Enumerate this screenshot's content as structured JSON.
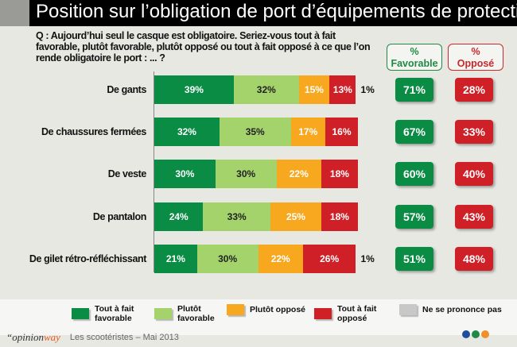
{
  "title": "Position sur l’obligation de port d’équipements de protection",
  "question": "Q : Aujourd’hui seul le casque est obligatoire. Seriez-vous tout à fait favorable, plutôt favorable, plutôt opposé ou tout à fait opposé à ce que l’on rende obligatoire le port : ... ?",
  "headers": {
    "favorable": [
      "%",
      "Favorable"
    ],
    "oppose": [
      "%",
      "Opposé"
    ]
  },
  "colors": {
    "tout_fav": "#0b8c44",
    "plutot_fav": "#a3d36a",
    "plutot_opp": "#f8a81f",
    "tout_opp": "#cf2027",
    "nsp": "#c8c8c8"
  },
  "chart_data": {
    "type": "bar",
    "stacked": true,
    "orientation": "horizontal",
    "categories": [
      "De gants",
      "De chaussures fermées",
      "De veste",
      "De pantalon",
      "De gilet rétro-réfléchissant"
    ],
    "series": [
      {
        "name": "Tout à fait favorable",
        "values": [
          39,
          32,
          30,
          24,
          21
        ]
      },
      {
        "name": "Plutôt favorable",
        "values": [
          32,
          35,
          30,
          33,
          30
        ]
      },
      {
        "name": "Plutôt opposé",
        "values": [
          15,
          17,
          22,
          25,
          22
        ]
      },
      {
        "name": "Tout à fait opposé",
        "values": [
          13,
          16,
          18,
          18,
          26
        ]
      },
      {
        "name": "Ne se prononce pas",
        "values": [
          1,
          0,
          0,
          0,
          1
        ]
      }
    ],
    "favorable": [
      71,
      67,
      60,
      57,
      51
    ],
    "oppose": [
      28,
      33,
      40,
      43,
      48
    ]
  },
  "footer": {
    "brand_prefix": "“opinion",
    "brand_suffix": "way",
    "text": "Les scootéristes – Mai 2013"
  }
}
